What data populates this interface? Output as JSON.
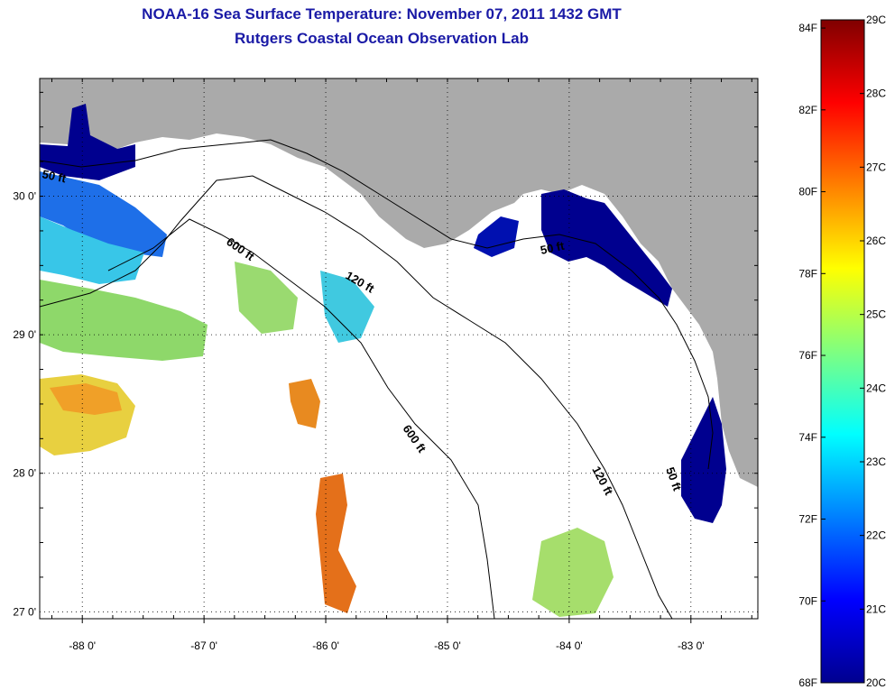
{
  "title": {
    "line1": "NOAA-16 Sea Surface Temperature:  November 07, 2011 1432 GMT",
    "line2": "Rutgers Coastal Ocean Observation Lab"
  },
  "map": {
    "lon_range": [
      -88.35,
      -82.45
    ],
    "lat_range": [
      26.95,
      30.85
    ],
    "lon_ticks": [
      -88,
      -87,
      -86,
      -85,
      -84,
      -83
    ],
    "lon_tick_labels": [
      "-88 0'",
      "-87 0'",
      "-86 0'",
      "-85 0'",
      "-84 0'",
      "-83 0'"
    ],
    "lat_ticks": [
      27,
      28,
      29,
      30
    ],
    "lat_tick_labels": [
      "27 0'",
      "28 0'",
      "29 0'",
      "30 0'"
    ],
    "grid": "dotted",
    "land_color": "#aaaaaa",
    "no_data_color": "#ffffff",
    "contour_labels": [
      "50 ft",
      "600 ft",
      "120 ft",
      "50 ft",
      "600 ft",
      "120 ft",
      "50 ft"
    ]
  },
  "colorbar": {
    "celsius_range": [
      20,
      29
    ],
    "fahrenheit_range": [
      68,
      84
    ],
    "celsius_labels": [
      "20C",
      "21C",
      "22C",
      "23C",
      "24C",
      "25C",
      "26C",
      "27C",
      "28C",
      "29C"
    ],
    "fahrenheit_labels": [
      "68F",
      "70F",
      "72F",
      "74F",
      "76F",
      "78F",
      "80F",
      "82F",
      "84F"
    ],
    "colormap": "jet"
  }
}
